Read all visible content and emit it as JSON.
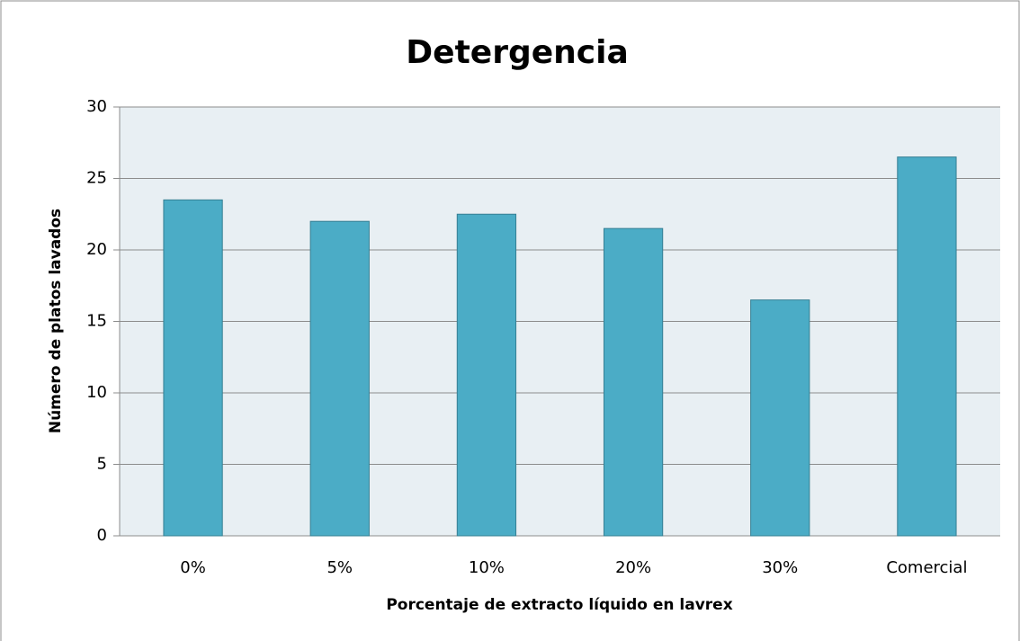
{
  "chart_data": {
    "type": "bar",
    "title": "Detergencia",
    "xlabel": "Porcentaje de extracto líquido en lavrex",
    "ylabel": "Número de platos lavados",
    "categories": [
      "0%",
      "5%",
      "10%",
      "20%",
      "30%",
      "Comercial"
    ],
    "values": [
      23.5,
      22,
      22.5,
      21.5,
      16.5,
      26.5
    ],
    "color": "#4bacc6",
    "ylim": [
      0,
      30
    ],
    "yticks": [
      0,
      5,
      10,
      15,
      20,
      25,
      30
    ],
    "grid": true
  }
}
